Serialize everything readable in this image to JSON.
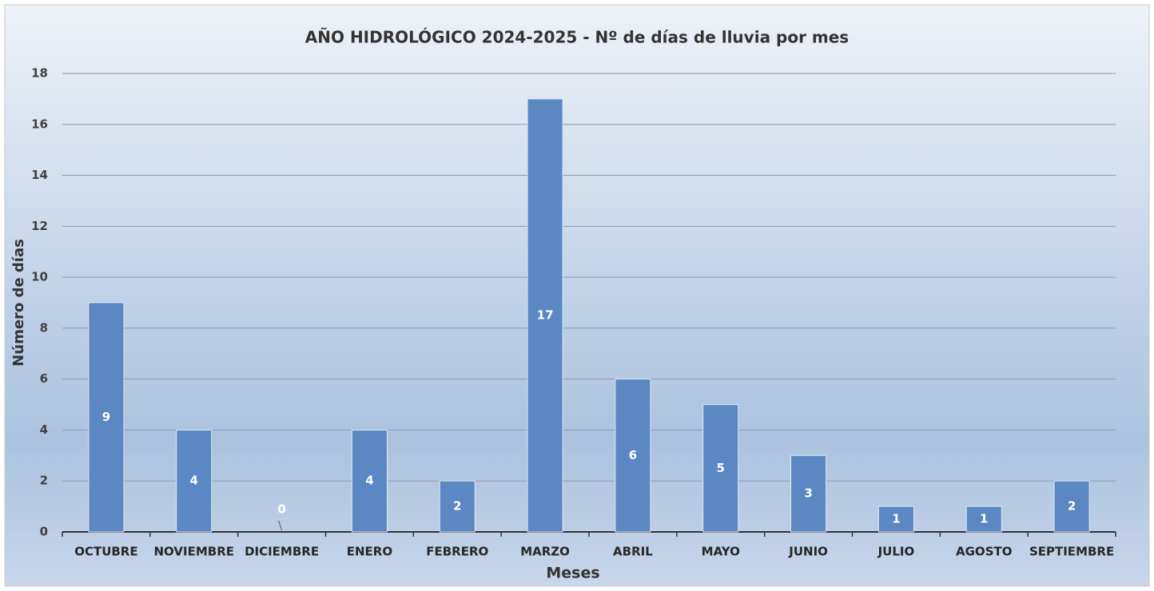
{
  "chart_data": {
    "type": "bar",
    "title": "AÑO HIDROLÓGICO 2024-2025 - Nº de días de lluvia por mes",
    "x_label": "Meses",
    "y_label": "Número de días",
    "categories": [
      "OCTUBRE",
      "NOVIEMBRE",
      "DICIEMBRE",
      "ENERO",
      "FEBRERO",
      "MARZO",
      "ABRIL",
      "MAYO",
      "JUNIO",
      "JULIO",
      "AGOSTO",
      "SEPTIEMBRE"
    ],
    "values": [
      9,
      4,
      0,
      4,
      2,
      17,
      6,
      5,
      3,
      1,
      1,
      2
    ],
    "color": "#5b87c2",
    "ylim": [
      0,
      18
    ],
    "yticks": [
      0,
      2,
      4,
      6,
      8,
      10,
      12,
      14,
      16,
      18
    ],
    "grid": true
  }
}
